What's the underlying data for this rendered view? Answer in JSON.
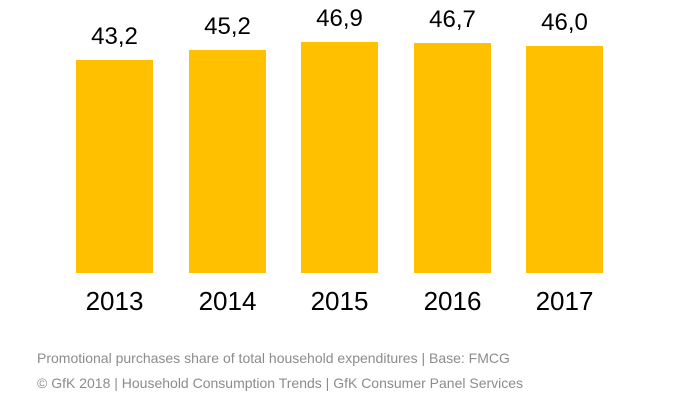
{
  "chart_data": {
    "type": "bar",
    "title": "",
    "xlabel": "",
    "ylabel": "",
    "categories": [
      "2013",
      "2014",
      "2015",
      "2016",
      "2017"
    ],
    "values": [
      43.2,
      45.2,
      46.9,
      46.7,
      46.0
    ],
    "value_labels": [
      "43,2",
      "45,2",
      "46,9",
      "46,7",
      "46,0"
    ],
    "ylim": [
      0,
      55.4
    ],
    "grid": false,
    "legend": "none",
    "bar_color": "#FFC000",
    "value_label_color": "#000000",
    "category_label_color": "#000000"
  },
  "footer": {
    "line1": "Promotional purchases share of total household expenditures | Base: FMCG",
    "line2": "© GfK 2018 | Household Consumption Trends | GfK Consumer Panel Services",
    "color": "#8C8C8C"
  }
}
